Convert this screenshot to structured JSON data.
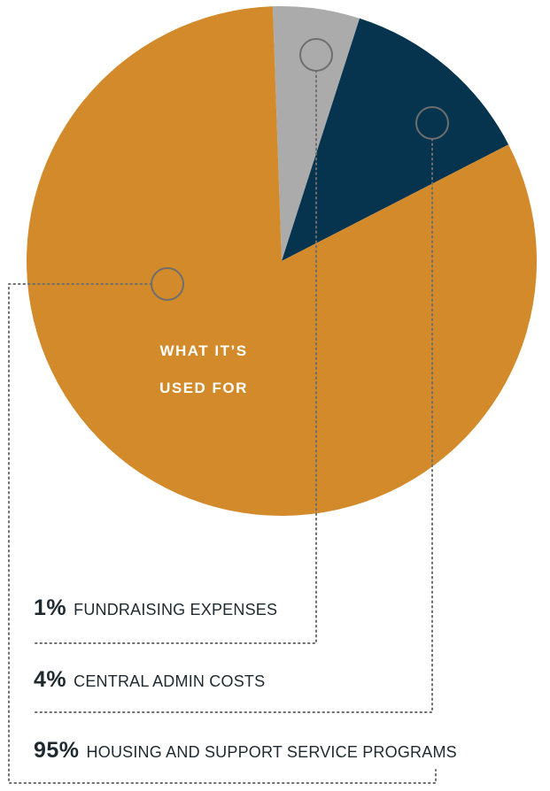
{
  "chart_data": {
    "type": "pie",
    "title": "WHAT IT’S USED FOR",
    "title_lines": [
      "WHAT IT’S",
      "USED FOR"
    ],
    "slices": [
      {
        "label": "FUNDRAISING EXPENSES",
        "percent_label": "1%",
        "value": 1,
        "color": "#ababab"
      },
      {
        "label": "CENTRAL ADMIN COSTS",
        "percent_label": "4%",
        "value": 4,
        "color": "#06344e"
      },
      {
        "label": "HOUSING AND SUPPORT SERVICE PROGRAMS",
        "percent_label": "95%",
        "value": 95,
        "color": "#d38a2b"
      }
    ]
  },
  "legend": [
    {
      "pct": "1%",
      "label": "FUNDRAISING EXPENSES"
    },
    {
      "pct": "4%",
      "label": "CENTRAL ADMIN COSTS"
    },
    {
      "pct": "95%",
      "label": "HOUSING AND SUPPORT SERVICE PROGRAMS"
    }
  ]
}
